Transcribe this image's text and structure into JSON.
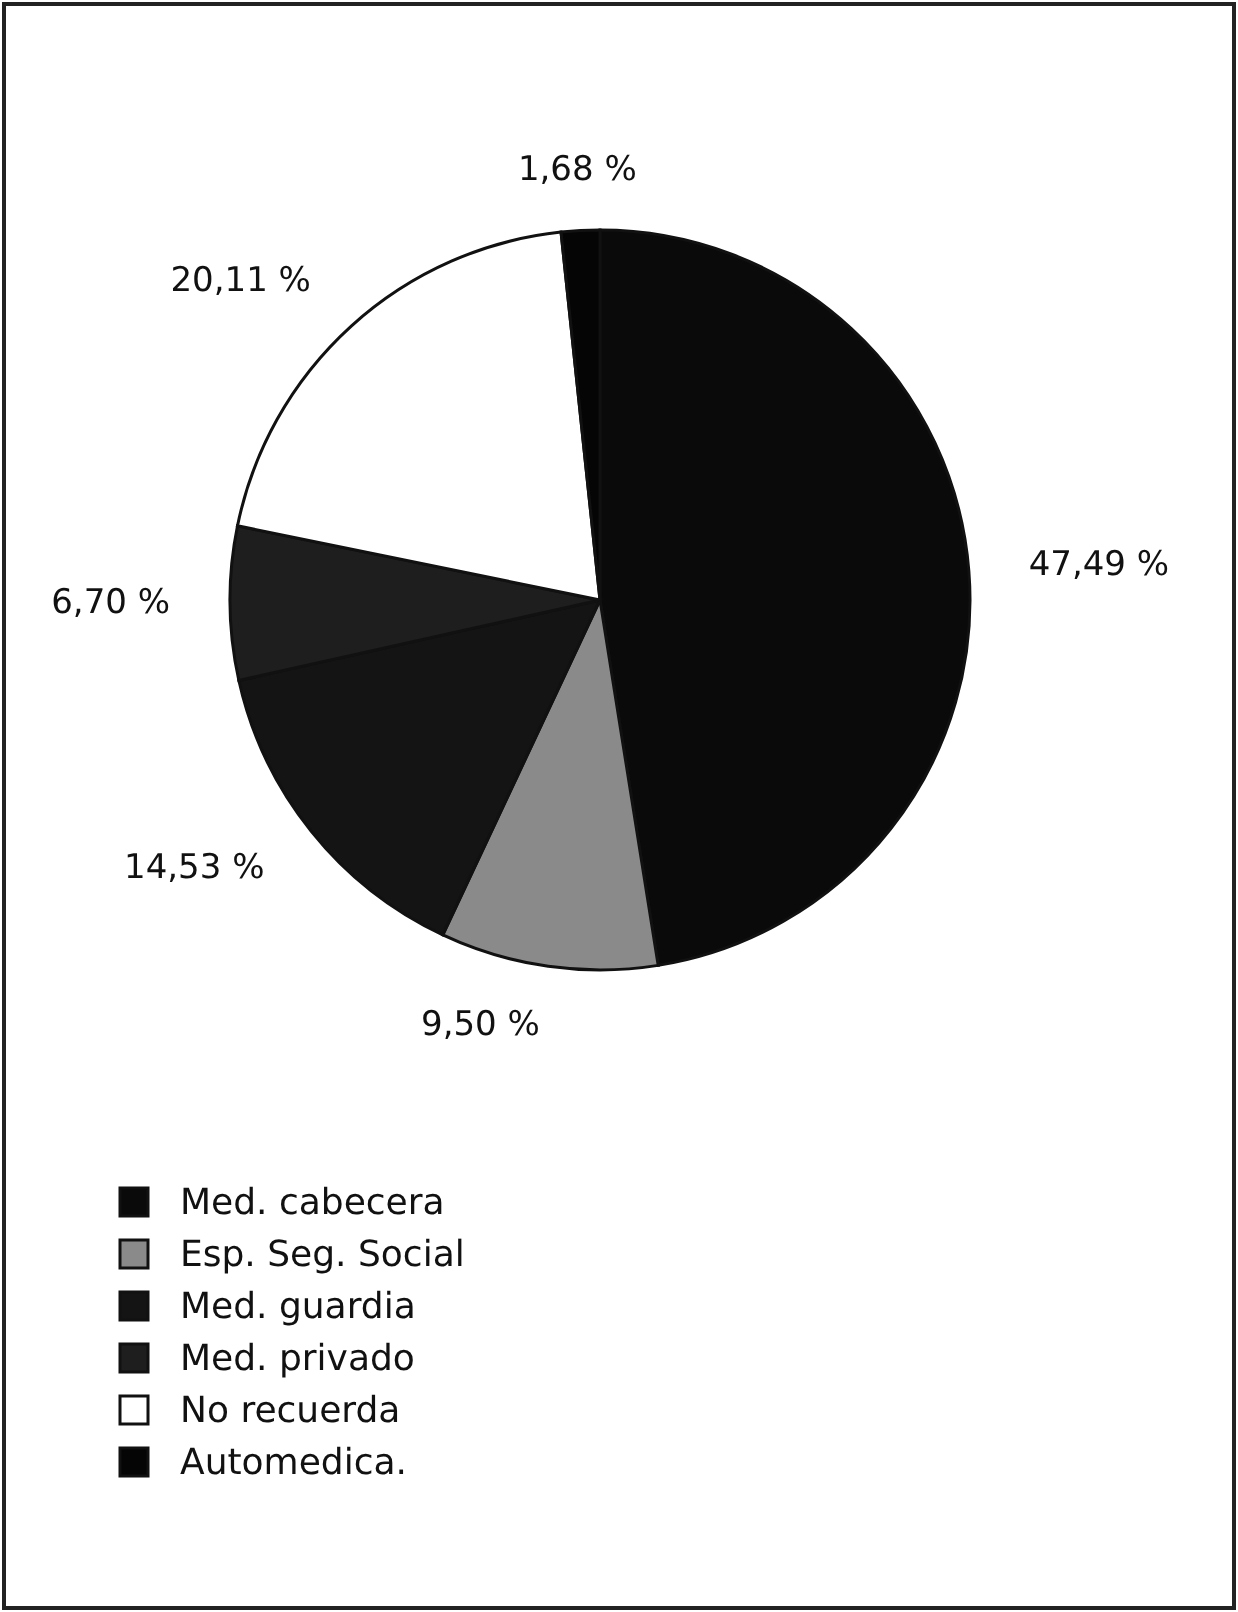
{
  "chart_data": {
    "type": "pie",
    "categories": [
      "Med. cabecera",
      "Esp. Seg. Social",
      "Med. guardia",
      "Med. privado",
      "No recuerda",
      "Automedica."
    ],
    "values": [
      47.49,
      9.5,
      14.53,
      6.7,
      20.11,
      1.68
    ],
    "value_labels": [
      "47,49 %",
      "9,50 %",
      "14,53 %",
      "6,70 %",
      "20,11 %",
      "1,68 %"
    ],
    "colors": [
      "#0a0a0a",
      "#8a8a8a",
      "#141414",
      "#1e1e1e",
      "#ffffff",
      "#050505"
    ],
    "legend": "bottom left"
  }
}
